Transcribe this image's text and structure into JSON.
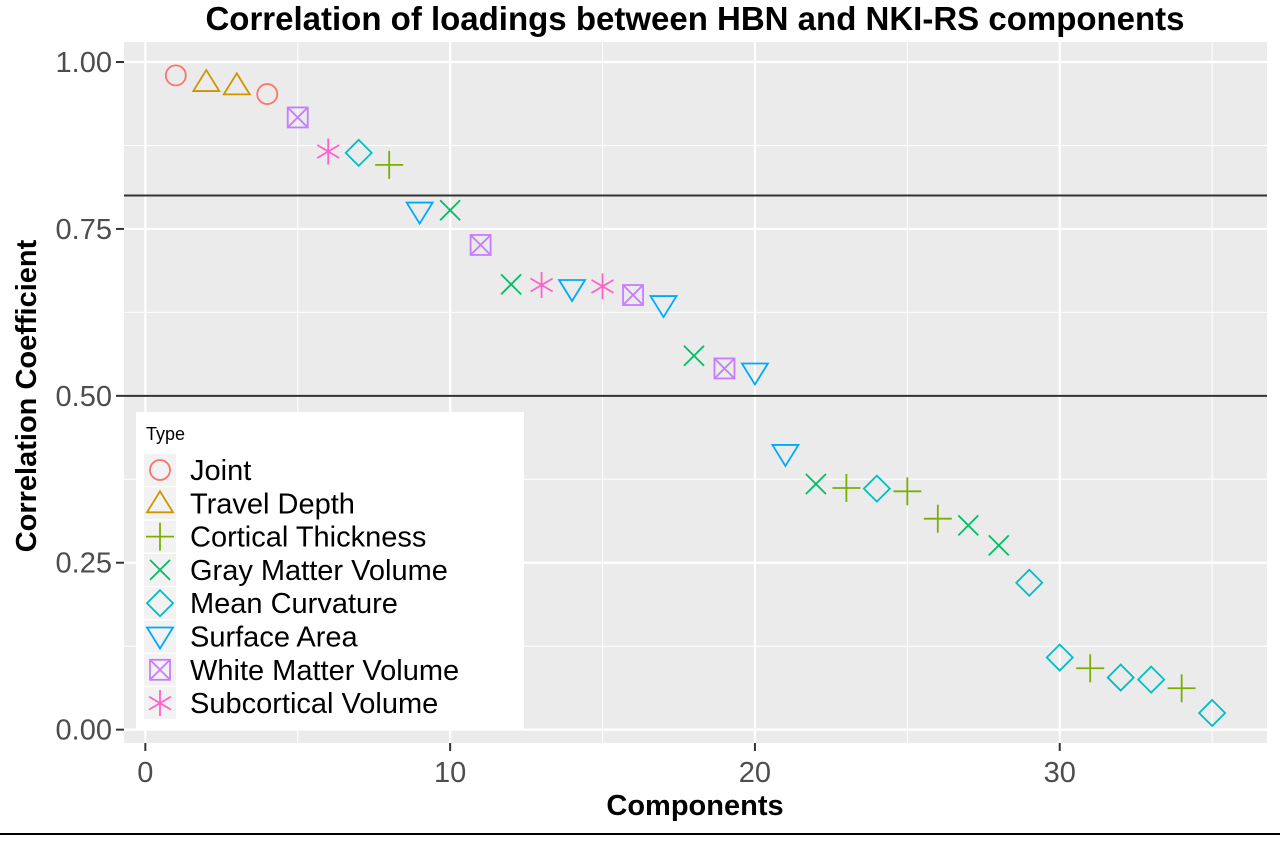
{
  "chart_data": {
    "type": "scatter",
    "title": "Correlation of loadings between HBN and NKI-RS components",
    "xlabel": "Components",
    "ylabel": "Correlation Coefficient",
    "xlim": [
      -0.7,
      36.8
    ],
    "ylim": [
      -0.02,
      1.03
    ],
    "x_ticks": [
      0,
      10,
      20,
      30
    ],
    "x_tick_labels": [
      "0",
      "10",
      "20",
      "30"
    ],
    "y_ticks": [
      0,
      0.25,
      0.5,
      0.75,
      1.0
    ],
    "y_tick_labels": [
      "0.00",
      "0.25",
      "0.50",
      "0.75",
      "1.00"
    ],
    "reference_lines": [
      0.8,
      0.5
    ],
    "grid": true,
    "legend": {
      "title": "Type",
      "placement": "bottom-left-inside",
      "entries": [
        {
          "name": "Joint",
          "shape": "circle",
          "color": "#F8766D"
        },
        {
          "name": "Travel Depth",
          "shape": "triangle-up",
          "color": "#CD9600"
        },
        {
          "name": "Cortical Thickness",
          "shape": "plus",
          "color": "#7CAE00"
        },
        {
          "name": "Gray Matter Volume",
          "shape": "cross",
          "color": "#00BE67"
        },
        {
          "name": "Mean Curvature",
          "shape": "diamond",
          "color": "#00BFC4"
        },
        {
          "name": "Surface Area",
          "shape": "triangle-down",
          "color": "#00A9FF"
        },
        {
          "name": "White Matter Volume",
          "shape": "square-cross",
          "color": "#C77CFF"
        },
        {
          "name": "Subcortical Volume",
          "shape": "asterisk",
          "color": "#FF61CC"
        }
      ]
    },
    "points": [
      {
        "x": 1,
        "y": 0.98,
        "type": "Joint"
      },
      {
        "x": 2,
        "y": 0.97,
        "type": "Travel Depth"
      },
      {
        "x": 3,
        "y": 0.965,
        "type": "Travel Depth"
      },
      {
        "x": 4,
        "y": 0.952,
        "type": "Joint"
      },
      {
        "x": 5,
        "y": 0.917,
        "type": "White Matter Volume"
      },
      {
        "x": 6,
        "y": 0.866,
        "type": "Subcortical Volume"
      },
      {
        "x": 7,
        "y": 0.864,
        "type": "Mean Curvature"
      },
      {
        "x": 8,
        "y": 0.846,
        "type": "Cortical Thickness"
      },
      {
        "x": 9,
        "y": 0.776,
        "type": "Surface Area"
      },
      {
        "x": 10,
        "y": 0.778,
        "type": "Gray Matter Volume"
      },
      {
        "x": 11,
        "y": 0.726,
        "type": "White Matter Volume"
      },
      {
        "x": 12,
        "y": 0.667,
        "type": "Gray Matter Volume"
      },
      {
        "x": 13,
        "y": 0.666,
        "type": "Subcortical Volume"
      },
      {
        "x": 14,
        "y": 0.66,
        "type": "Surface Area"
      },
      {
        "x": 15,
        "y": 0.664,
        "type": "Subcortical Volume"
      },
      {
        "x": 16,
        "y": 0.651,
        "type": "White Matter Volume"
      },
      {
        "x": 17,
        "y": 0.636,
        "type": "Surface Area"
      },
      {
        "x": 18,
        "y": 0.56,
        "type": "Gray Matter Volume"
      },
      {
        "x": 19,
        "y": 0.541,
        "type": "White Matter Volume"
      },
      {
        "x": 20,
        "y": 0.535,
        "type": "Surface Area"
      },
      {
        "x": 21,
        "y": 0.413,
        "type": "Surface Area"
      },
      {
        "x": 22,
        "y": 0.368,
        "type": "Gray Matter Volume"
      },
      {
        "x": 23,
        "y": 0.362,
        "type": "Cortical Thickness"
      },
      {
        "x": 24,
        "y": 0.361,
        "type": "Mean Curvature"
      },
      {
        "x": 25,
        "y": 0.357,
        "type": "Cortical Thickness"
      },
      {
        "x": 26,
        "y": 0.316,
        "type": "Cortical Thickness"
      },
      {
        "x": 27,
        "y": 0.306,
        "type": "Gray Matter Volume"
      },
      {
        "x": 28,
        "y": 0.276,
        "type": "Gray Matter Volume"
      },
      {
        "x": 29,
        "y": 0.22,
        "type": "Mean Curvature"
      },
      {
        "x": 30,
        "y": 0.108,
        "type": "Mean Curvature"
      },
      {
        "x": 31,
        "y": 0.092,
        "type": "Cortical Thickness"
      },
      {
        "x": 32,
        "y": 0.078,
        "type": "Mean Curvature"
      },
      {
        "x": 33,
        "y": 0.075,
        "type": "Mean Curvature"
      },
      {
        "x": 34,
        "y": 0.062,
        "type": "Cortical Thickness"
      },
      {
        "x": 35,
        "y": 0.025,
        "type": "Mean Curvature"
      }
    ]
  }
}
